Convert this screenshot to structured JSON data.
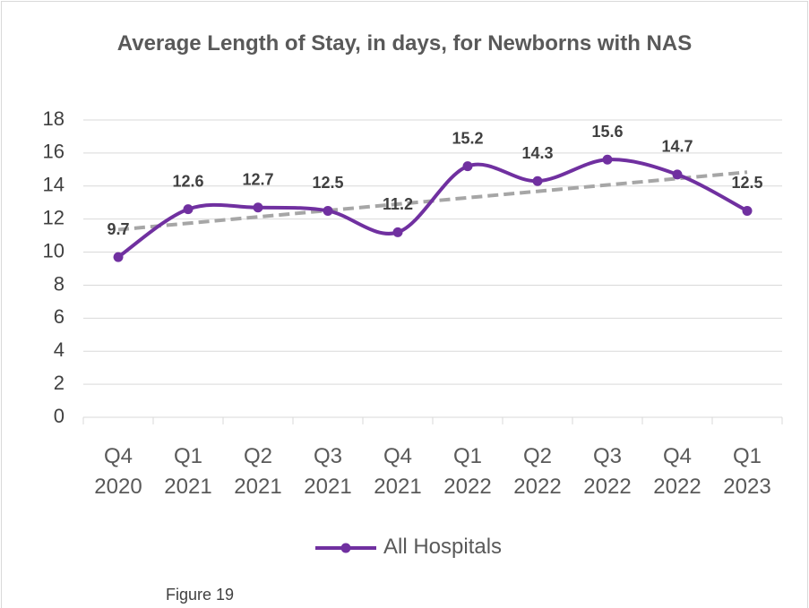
{
  "chart_data": {
    "type": "line",
    "title": "Average Length of Stay, in days, for Newborns with NAS",
    "categories": [
      "Q4 2020",
      "Q1 2021",
      "Q2 2021",
      "Q3 2021",
      "Q4 2021",
      "Q1 2022",
      "Q2 2022",
      "Q3 2022",
      "Q4 2022",
      "Q1 2023"
    ],
    "series": [
      {
        "name": "All Hospitals",
        "color": "#7030a0",
        "values": [
          9.7,
          12.6,
          12.7,
          12.5,
          11.2,
          15.2,
          14.3,
          15.6,
          14.7,
          12.5
        ]
      }
    ],
    "ylim": [
      0,
      18
    ],
    "yticks": [
      0,
      2,
      4,
      6,
      8,
      10,
      12,
      14,
      16,
      18
    ],
    "grid": true,
    "smooth": true,
    "trendline": "linear",
    "trendline_color": "#a6a6a6",
    "legend": "bottom",
    "data_labels": true
  },
  "caption": "Figure 19"
}
